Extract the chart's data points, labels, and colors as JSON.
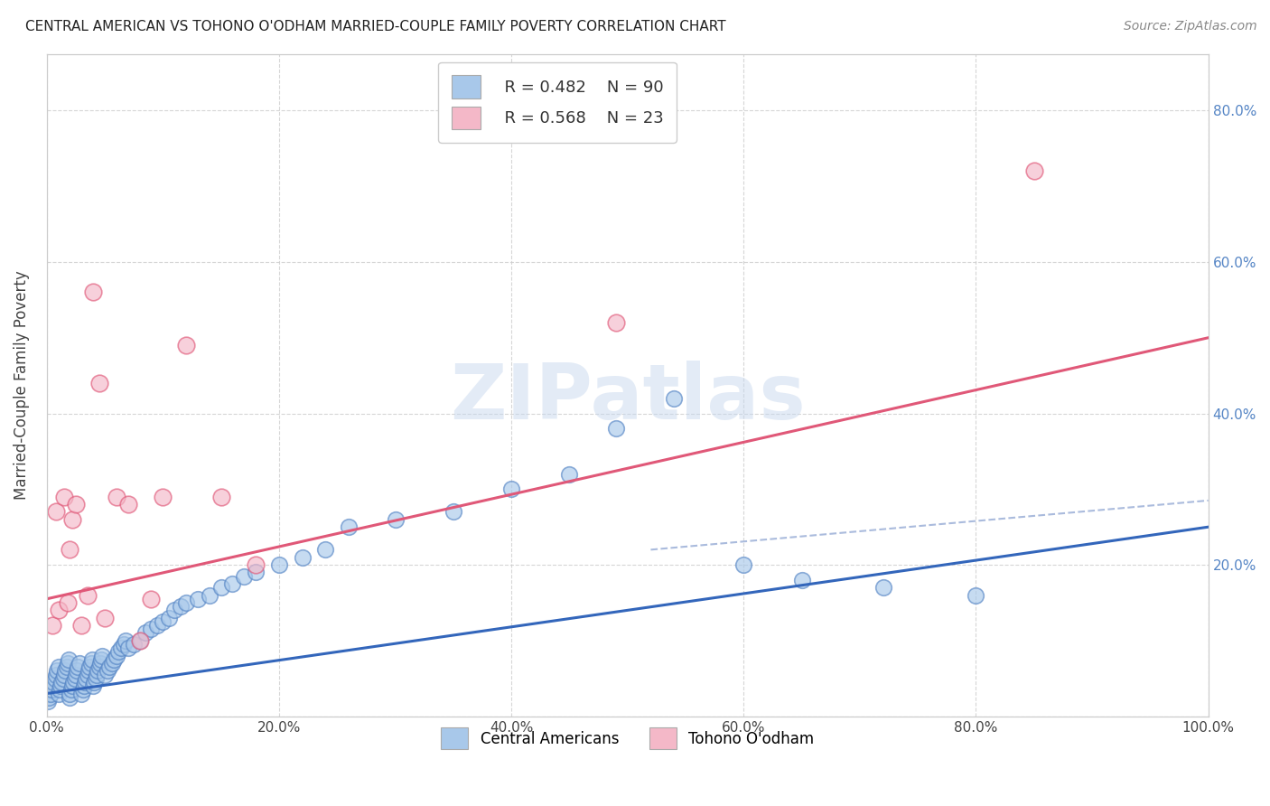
{
  "title": "CENTRAL AMERICAN VS TOHONO O'ODHAM MARRIED-COUPLE FAMILY POVERTY CORRELATION CHART",
  "source": "Source: ZipAtlas.com",
  "ylabel": "Married-Couple Family Poverty",
  "xlim": [
    0,
    1.0
  ],
  "ylim": [
    0,
    0.875
  ],
  "xticks": [
    0.0,
    0.2,
    0.4,
    0.6,
    0.8,
    1.0
  ],
  "xticklabels": [
    "0.0%",
    "20.0%",
    "40.0%",
    "60.0%",
    "80.0%",
    "100.0%"
  ],
  "yticks_left": [
    0.0,
    0.2,
    0.4,
    0.6,
    0.8
  ],
  "yticks_right": [
    0.0,
    0.2,
    0.4,
    0.6,
    0.8
  ],
  "right_yticklabels": [
    "",
    "20.0%",
    "40.0%",
    "60.0%",
    "80.0%"
  ],
  "legend_r1": "R = 0.482",
  "legend_n1": "N = 90",
  "legend_r2": "R = 0.568",
  "legend_n2": "N = 23",
  "legend_color1": "#a8c8ea",
  "legend_color2": "#f4b8c8",
  "scatter_color1": "#a8c8ea",
  "scatter_color2": "#f4b8c8",
  "scatter_edge1": "#5585c5",
  "scatter_edge2": "#e05878",
  "line_color1": "#3366bb",
  "line_color2": "#e05878",
  "dashed_color": "#aabbdd",
  "blue_points_x": [
    0.001,
    0.002,
    0.003,
    0.004,
    0.005,
    0.006,
    0.007,
    0.008,
    0.009,
    0.01,
    0.01,
    0.011,
    0.012,
    0.013,
    0.014,
    0.015,
    0.016,
    0.017,
    0.018,
    0.019,
    0.02,
    0.02,
    0.021,
    0.022,
    0.023,
    0.024,
    0.025,
    0.026,
    0.027,
    0.028,
    0.03,
    0.031,
    0.032,
    0.033,
    0.034,
    0.035,
    0.036,
    0.037,
    0.038,
    0.039,
    0.04,
    0.041,
    0.042,
    0.043,
    0.044,
    0.045,
    0.046,
    0.047,
    0.048,
    0.05,
    0.052,
    0.054,
    0.056,
    0.058,
    0.06,
    0.062,
    0.064,
    0.066,
    0.068,
    0.07,
    0.075,
    0.08,
    0.085,
    0.09,
    0.095,
    0.1,
    0.105,
    0.11,
    0.115,
    0.12,
    0.13,
    0.14,
    0.15,
    0.16,
    0.17,
    0.18,
    0.2,
    0.22,
    0.24,
    0.26,
    0.3,
    0.35,
    0.4,
    0.45,
    0.49,
    0.54,
    0.6,
    0.65,
    0.72,
    0.8
  ],
  "blue_points_y": [
    0.02,
    0.025,
    0.03,
    0.035,
    0.04,
    0.045,
    0.05,
    0.055,
    0.06,
    0.065,
    0.03,
    0.035,
    0.04,
    0.045,
    0.05,
    0.055,
    0.06,
    0.065,
    0.07,
    0.075,
    0.025,
    0.03,
    0.035,
    0.04,
    0.045,
    0.05,
    0.055,
    0.06,
    0.065,
    0.07,
    0.03,
    0.035,
    0.04,
    0.045,
    0.05,
    0.055,
    0.06,
    0.065,
    0.07,
    0.075,
    0.04,
    0.045,
    0.05,
    0.055,
    0.06,
    0.065,
    0.07,
    0.075,
    0.08,
    0.055,
    0.06,
    0.065,
    0.07,
    0.075,
    0.08,
    0.085,
    0.09,
    0.095,
    0.1,
    0.09,
    0.095,
    0.1,
    0.11,
    0.115,
    0.12,
    0.125,
    0.13,
    0.14,
    0.145,
    0.15,
    0.155,
    0.16,
    0.17,
    0.175,
    0.185,
    0.19,
    0.2,
    0.21,
    0.22,
    0.25,
    0.26,
    0.27,
    0.3,
    0.32,
    0.38,
    0.42,
    0.2,
    0.18,
    0.17,
    0.16
  ],
  "pink_points_x": [
    0.005,
    0.008,
    0.01,
    0.015,
    0.018,
    0.02,
    0.022,
    0.025,
    0.03,
    0.035,
    0.04,
    0.045,
    0.05,
    0.06,
    0.07,
    0.08,
    0.09,
    0.1,
    0.12,
    0.15,
    0.18,
    0.49,
    0.85
  ],
  "pink_points_y": [
    0.12,
    0.27,
    0.14,
    0.29,
    0.15,
    0.22,
    0.26,
    0.28,
    0.12,
    0.16,
    0.56,
    0.44,
    0.13,
    0.29,
    0.28,
    0.1,
    0.155,
    0.29,
    0.49,
    0.29,
    0.2,
    0.52,
    0.72
  ],
  "blue_line_x0": 0.0,
  "blue_line_x1": 1.0,
  "blue_line_y0": 0.03,
  "blue_line_y1": 0.25,
  "pink_line_x0": 0.0,
  "pink_line_x1": 1.0,
  "pink_line_y0": 0.155,
  "pink_line_y1": 0.5,
  "dashed_line_x0": 0.52,
  "dashed_line_x1": 1.0,
  "dashed_line_y0": 0.22,
  "dashed_line_y1": 0.285,
  "watermark_text": "ZIPatlas",
  "background_color": "#ffffff",
  "grid_color": "#cccccc",
  "title_fontsize": 11,
  "source_fontsize": 10,
  "tick_fontsize": 11,
  "ylabel_fontsize": 12
}
